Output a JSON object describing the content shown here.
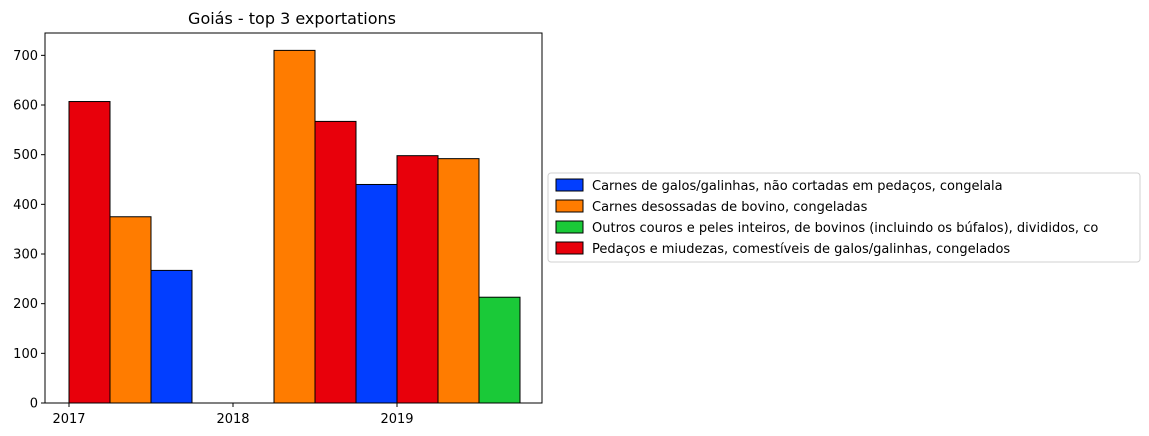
{
  "chart_data": {
    "type": "bar",
    "title": "Goiás - top 3 exportations",
    "xlabel": "",
    "ylabel": "",
    "ylim": [
      0,
      745
    ],
    "yticks": [
      0,
      100,
      200,
      300,
      400,
      500,
      600,
      700
    ],
    "xticks": [
      "2017",
      "2018",
      "2019"
    ],
    "grid": false,
    "legend_position": "right",
    "series": [
      {
        "name": "Carnes de galos/galinhas, não cortadas em pedaços, congelala",
        "color": "#023eff",
        "values": [
          {
            "year": "2017",
            "slot": 2,
            "value": 267
          },
          {
            "year": "2018",
            "slot": 3,
            "value": 440
          }
        ]
      },
      {
        "name": "Carnes desossadas de bovino, congeladas",
        "color": "#ff7c00",
        "values": [
          {
            "year": "2017",
            "slot": 1,
            "value": 375
          },
          {
            "year": "2018",
            "slot": 1,
            "value": 710
          },
          {
            "year": "2019",
            "slot": 1,
            "value": 492
          }
        ]
      },
      {
        "name": "Outros couros e peles inteiros, de bovinos (incluindo os búfalos), divididos, co",
        "color": "#1ac938",
        "values": [
          {
            "year": "2019",
            "slot": 2,
            "value": 213
          }
        ]
      },
      {
        "name": "Pedaços e miudezas, comestíveis de galos/galinhas, congelados",
        "color": "#e8000b",
        "values": [
          {
            "year": "2017",
            "slot": 0,
            "value": 607
          },
          {
            "year": "2018",
            "slot": 2,
            "value": 567
          },
          {
            "year": "2019",
            "slot": 0,
            "value": 498
          }
        ]
      }
    ]
  }
}
